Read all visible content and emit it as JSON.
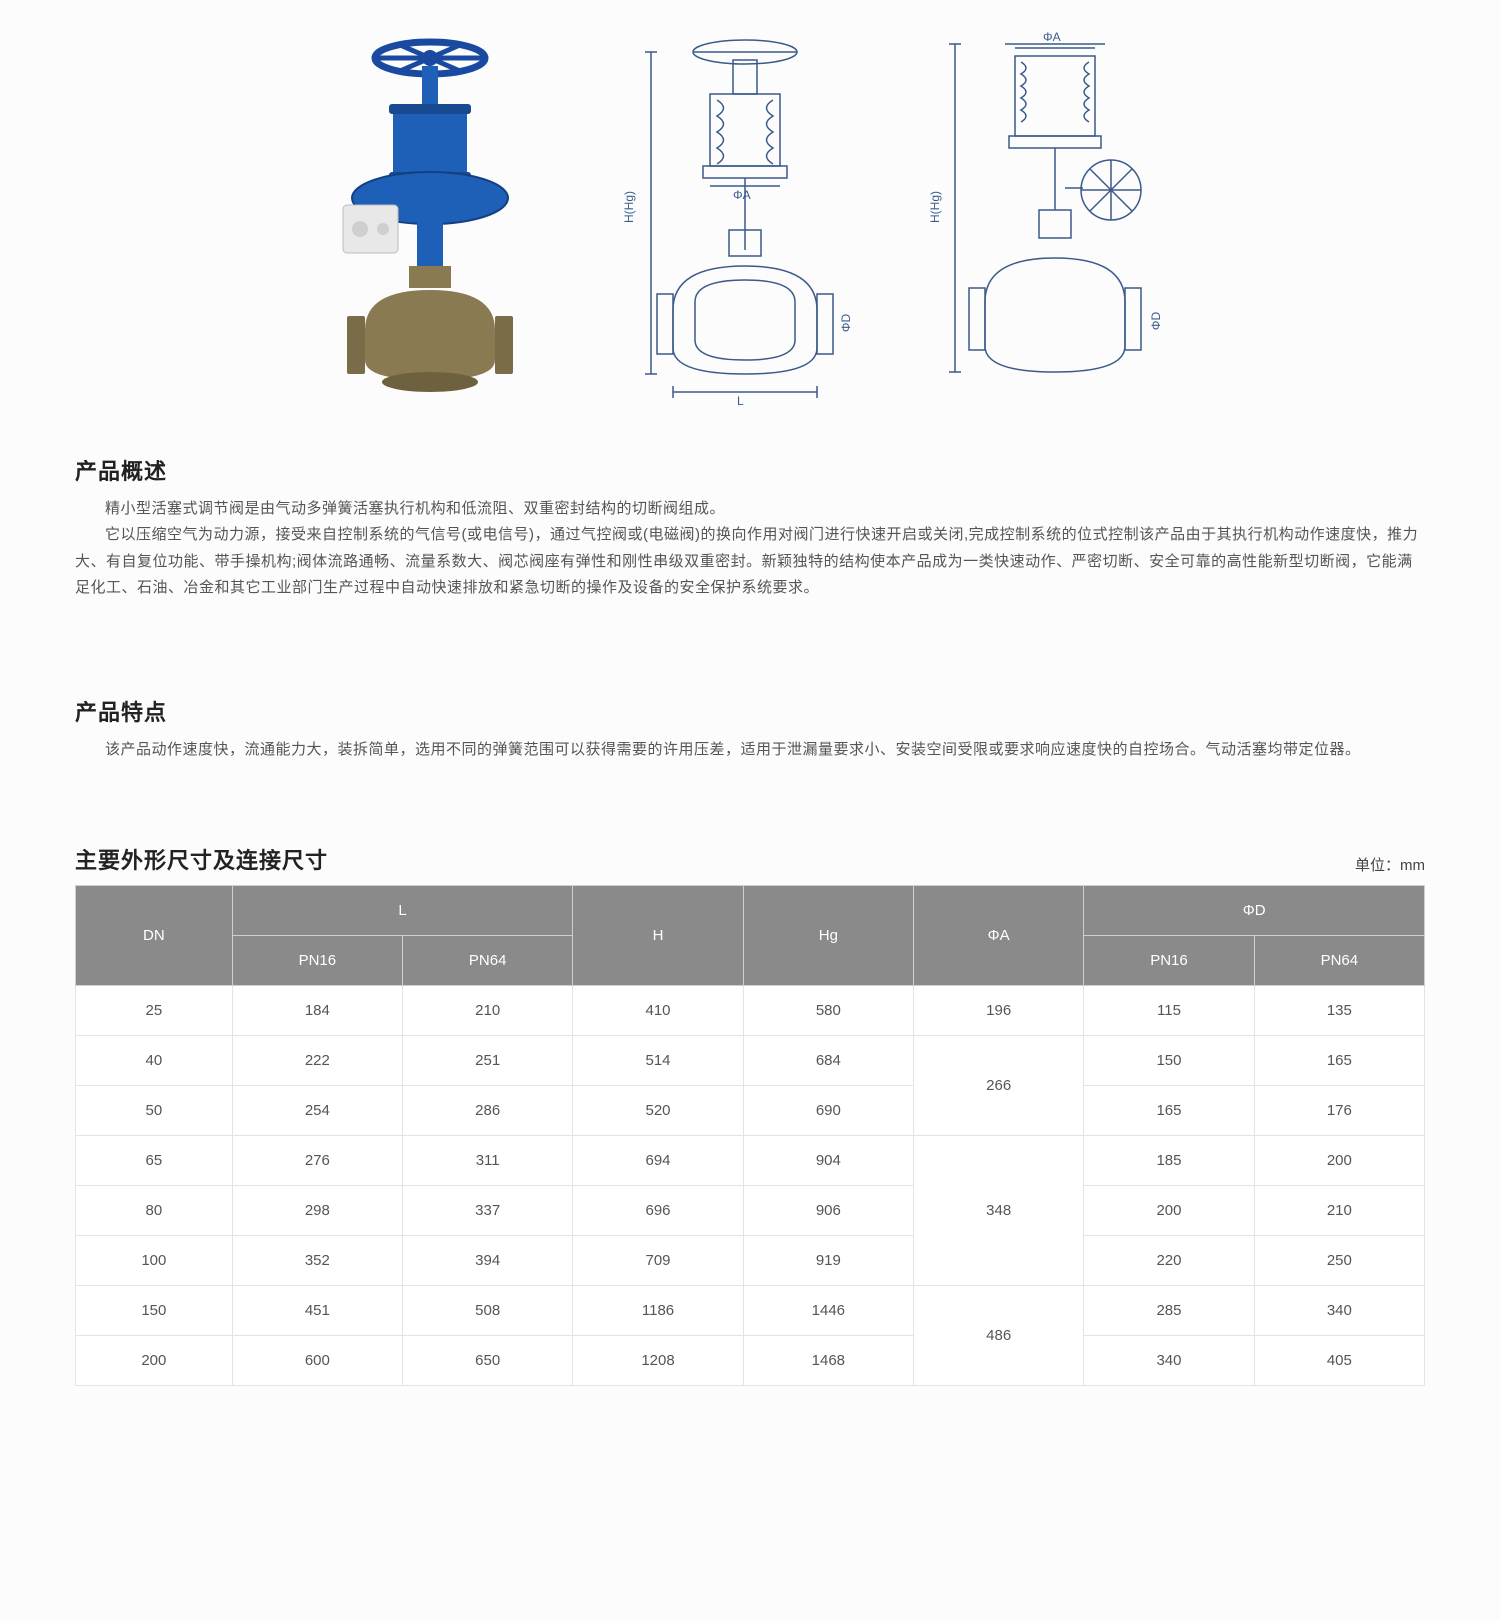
{
  "figures": {
    "photo_name": "valve-photo",
    "drawing1_name": "valve-section-drawing",
    "drawing2_name": "valve-outline-drawing",
    "dim_labels": {
      "H": "H(Hg)",
      "L": "L",
      "phiA": "ΦA",
      "phiD": "ΦD"
    },
    "photo_colors": {
      "handwheel": "#1a4aa0",
      "actuator": "#1e5fb8",
      "body": "#8a7a52",
      "positioner": "#e8e8e8"
    },
    "drawing_stroke": "#3a5a8a"
  },
  "overview": {
    "title": "产品概述",
    "p1": "精小型活塞式调节阀是由气动多弹簧活塞执行机构和低流阻、双重密封结构的切断阀组成。",
    "p2": "它以压缩空气为动力源，接受来自控制系统的气信号(或电信号)，通过气控阀或(电磁阀)的换向作用对阀门进行快速开启或关闭,完成控制系统的位式控制该产品由于其执行机构动作速度快，推力大、有自复位功能、带手操机构;阀体流路通畅、流量系数大、阀芯阀座有弹性和刚性串级双重密封。新颖独特的结构使本产品成为一类快速动作、严密切断、安全可靠的高性能新型切断阀，它能满足化工、石油、冶金和其它工业部门生产过程中自动快速排放和紧急切断的操作及设备的安全保护系统要求。"
  },
  "features": {
    "title": "产品特点",
    "p1": "该产品动作速度快，流通能力大，装拆简单，选用不同的弹簧范围可以获得需要的许用压差，适用于泄漏量要求小、安装空间受限或要求响应速度快的自控场合。气动活塞均带定位器。"
  },
  "spec_table": {
    "title": "主要外形尺寸及连接尺寸",
    "unit": "单位：mm",
    "headers": {
      "dn": "DN",
      "L": "L",
      "H": "H",
      "Hg": "Hg",
      "phiA": "ΦA",
      "phiD": "ΦD",
      "pn16": "PN16",
      "pn64": "PN64"
    },
    "rows": [
      {
        "dn": "25",
        "l16": "184",
        "l64": "210",
        "h": "410",
        "hg": "580",
        "d16": "115",
        "d64": "135"
      },
      {
        "dn": "40",
        "l16": "222",
        "l64": "251",
        "h": "514",
        "hg": "684",
        "d16": "150",
        "d64": "165"
      },
      {
        "dn": "50",
        "l16": "254",
        "l64": "286",
        "h": "520",
        "hg": "690",
        "d16": "165",
        "d64": "176"
      },
      {
        "dn": "65",
        "l16": "276",
        "l64": "311",
        "h": "694",
        "hg": "904",
        "d16": "185",
        "d64": "200"
      },
      {
        "dn": "80",
        "l16": "298",
        "l64": "337",
        "h": "696",
        "hg": "906",
        "d16": "200",
        "d64": "210"
      },
      {
        "dn": "100",
        "l16": "352",
        "l64": "394",
        "h": "709",
        "hg": "919",
        "d16": "220",
        "d64": "250"
      },
      {
        "dn": "150",
        "l16": "451",
        "l64": "508",
        "h": "1186",
        "hg": "1446",
        "d16": "285",
        "d64": "340"
      },
      {
        "dn": "200",
        "l16": "600",
        "l64": "650",
        "h": "1208",
        "hg": "1468",
        "d16": "340",
        "d64": "405"
      }
    ],
    "phiA_groups": [
      {
        "value": "196",
        "span": 1
      },
      {
        "value": "266",
        "span": 2
      },
      {
        "value": "348",
        "span": 3
      },
      {
        "value": "486",
        "span": 2
      }
    ],
    "col_widths_pct": [
      11.5,
      12.5,
      12.5,
      12.5,
      12.5,
      12.5,
      12.5,
      12.5
    ],
    "header_bg": "#8a8a8a",
    "header_fg": "#ffffff",
    "cell_bg": "#ffffff",
    "cell_fg": "#555555",
    "border_color": "#e3e3e3",
    "font_size_pt": 11
  }
}
